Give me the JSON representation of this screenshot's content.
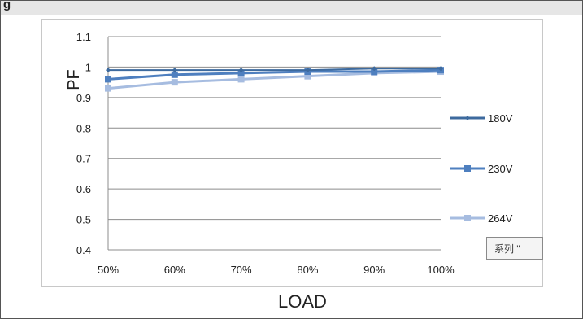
{
  "header": {
    "text": "g"
  },
  "tooltip": {
    "text": "系列 \""
  },
  "chart_data": {
    "type": "line",
    "title": "",
    "xlabel": "LOAD",
    "ylabel": "PF",
    "categories": [
      "50%",
      "60%",
      "70%",
      "80%",
      "90%",
      "100%"
    ],
    "ylim": [
      0.4,
      1.1
    ],
    "yticks": [
      "0.4",
      "0.5",
      "0.6",
      "0.7",
      "0.8",
      "0.9",
      "1",
      "1.1"
    ],
    "grid": "horizontal",
    "legend": "right",
    "series": [
      {
        "name": "180V",
        "values": [
          0.99,
          0.99,
          0.99,
          0.99,
          0.995,
          0.995
        ],
        "color": "#3d6a9e",
        "marker": "diamond"
      },
      {
        "name": "230V",
        "values": [
          0.96,
          0.975,
          0.98,
          0.985,
          0.985,
          0.99
        ],
        "color": "#4e7fbf",
        "marker": "square"
      },
      {
        "name": "264V",
        "values": [
          0.93,
          0.95,
          0.96,
          0.97,
          0.98,
          0.985
        ],
        "color": "#a6bce0",
        "marker": "square"
      }
    ]
  }
}
